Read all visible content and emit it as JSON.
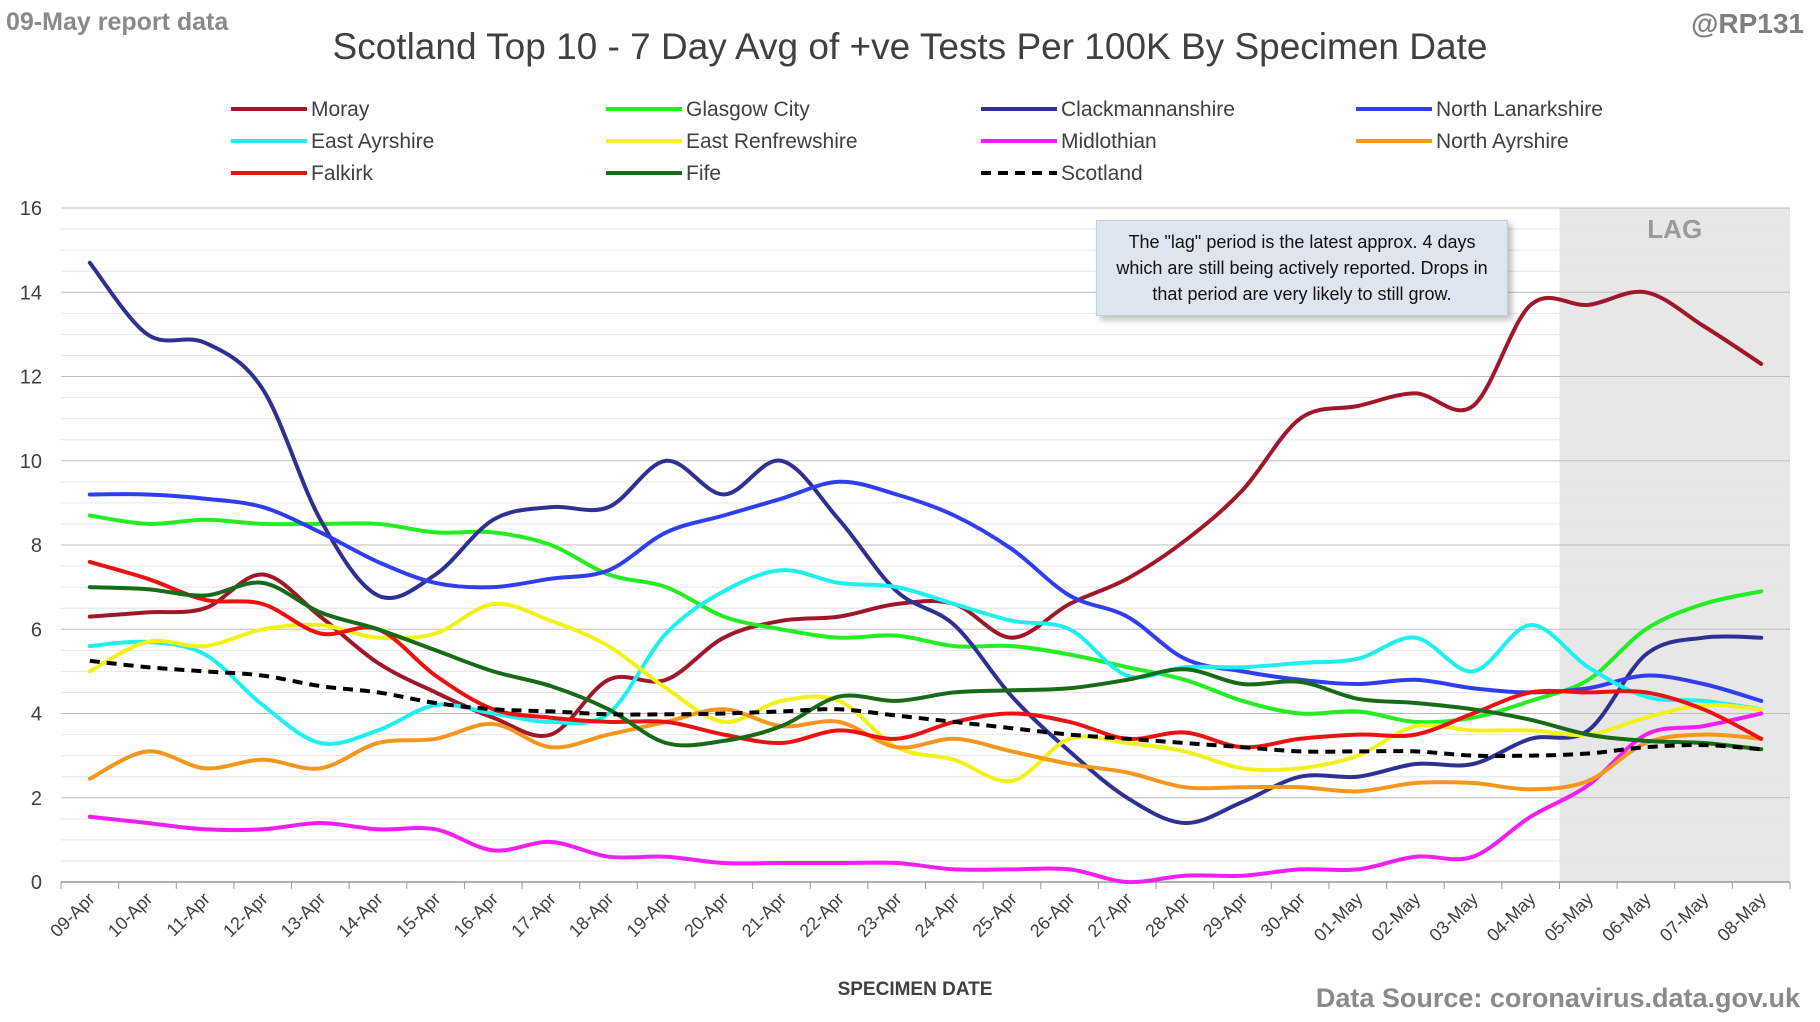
{
  "header": {
    "report_date": "09-May report data",
    "handle": "@RP131"
  },
  "footer": {
    "source": "Data Source: coronavirus.data.gov.uk"
  },
  "annotations": {
    "lag_label": "LAG",
    "lag_note": "The \"lag\" period is the latest approx. 4 days which are still being actively reported.  Drops in that period are very likely to still grow."
  },
  "colors": {
    "Moray": "#a0172a",
    "Glasgow City": "#22ee22",
    "Clackmannanshire": "#2e3192",
    "North Lanarkshire": "#2f3ef0",
    "East Ayrshire": "#1ef0f0",
    "East Renfrewshire": "#f2f21a",
    "Midlothian": "#f21ef2",
    "North Ayrshire": "#f5961e",
    "Falkirk": "#ee1111",
    "Fife": "#176b17",
    "Scotland": "#000000"
  },
  "chart_data": {
    "type": "line",
    "title": "Scotland Top 10 - 7 Day Avg of +ve Tests Per 100K By Specimen Date",
    "xlabel": "SPECIMEN DATE",
    "ylabel": "",
    "ylim": [
      0,
      16
    ],
    "yticks": [
      0,
      2,
      4,
      6,
      8,
      10,
      12,
      14,
      16
    ],
    "grid": true,
    "legend_position": "top",
    "lag_region": [
      "05-May",
      "08-May"
    ],
    "x": [
      "09-Apr",
      "10-Apr",
      "11-Apr",
      "12-Apr",
      "13-Apr",
      "14-Apr",
      "15-Apr",
      "16-Apr",
      "17-Apr",
      "18-Apr",
      "19-Apr",
      "20-Apr",
      "21-Apr",
      "22-Apr",
      "23-Apr",
      "24-Apr",
      "25-Apr",
      "26-Apr",
      "27-Apr",
      "28-Apr",
      "29-Apr",
      "30-Apr",
      "01-May",
      "02-May",
      "03-May",
      "04-May",
      "05-May",
      "06-May",
      "07-May",
      "08-May"
    ],
    "series": [
      {
        "name": "Moray",
        "style": "solid",
        "values": [
          6.3,
          6.4,
          6.5,
          7.3,
          6.3,
          5.2,
          4.5,
          3.9,
          3.5,
          4.8,
          4.8,
          5.8,
          6.2,
          6.3,
          6.6,
          6.6,
          5.8,
          6.6,
          7.2,
          8.1,
          9.3,
          11.0,
          11.3,
          11.6,
          11.3,
          13.7,
          13.7,
          14.0,
          13.2,
          12.3
        ]
      },
      {
        "name": "Glasgow City",
        "style": "solid",
        "values": [
          8.7,
          8.5,
          8.6,
          8.5,
          8.5,
          8.5,
          8.3,
          8.3,
          8.0,
          7.3,
          7.0,
          6.3,
          6.0,
          5.8,
          5.85,
          5.6,
          5.6,
          5.4,
          5.1,
          4.8,
          4.3,
          4.0,
          4.05,
          3.8,
          3.9,
          4.3,
          4.8,
          6.0,
          6.6,
          6.9
        ]
      },
      {
        "name": "Clackmannanshire",
        "style": "solid",
        "values": [
          14.7,
          13.0,
          12.8,
          11.7,
          8.6,
          6.8,
          7.3,
          8.6,
          8.9,
          8.9,
          10.0,
          9.2,
          10.0,
          8.6,
          6.9,
          6.1,
          4.4,
          3.1,
          2.0,
          1.4,
          1.9,
          2.5,
          2.5,
          2.8,
          2.8,
          3.4,
          3.6,
          5.4,
          5.8,
          5.8
        ]
      },
      {
        "name": "North Lanarkshire",
        "style": "solid",
        "values": [
          9.2,
          9.2,
          9.1,
          8.9,
          8.3,
          7.6,
          7.1,
          7.0,
          7.2,
          7.4,
          8.3,
          8.7,
          9.1,
          9.5,
          9.2,
          8.7,
          7.9,
          6.8,
          6.3,
          5.3,
          5.0,
          4.8,
          4.7,
          4.8,
          4.6,
          4.5,
          4.6,
          4.9,
          4.7,
          4.3
        ]
      },
      {
        "name": "East Ayrshire",
        "style": "solid",
        "values": [
          5.6,
          5.7,
          5.4,
          4.2,
          3.3,
          3.6,
          4.2,
          4.0,
          3.8,
          4.0,
          5.9,
          6.9,
          7.4,
          7.1,
          7.0,
          6.6,
          6.2,
          6.0,
          4.9,
          5.1,
          5.1,
          5.2,
          5.3,
          5.8,
          5.0,
          6.1,
          5.1,
          4.4,
          4.3,
          4.1
        ]
      },
      {
        "name": "East Renfrewshire",
        "style": "solid",
        "values": [
          5.0,
          5.7,
          5.6,
          6.0,
          6.1,
          5.8,
          5.9,
          6.6,
          6.2,
          5.6,
          4.6,
          3.8,
          4.3,
          4.3,
          3.2,
          2.9,
          2.4,
          3.4,
          3.3,
          3.1,
          2.7,
          2.7,
          3.0,
          3.7,
          3.6,
          3.6,
          3.5,
          3.9,
          4.2,
          4.1
        ]
      },
      {
        "name": "Midlothian",
        "style": "solid",
        "values": [
          1.55,
          1.4,
          1.25,
          1.25,
          1.4,
          1.25,
          1.25,
          0.75,
          0.95,
          0.6,
          0.6,
          0.45,
          0.45,
          0.45,
          0.45,
          0.3,
          0.3,
          0.3,
          0.0,
          0.15,
          0.15,
          0.3,
          0.3,
          0.6,
          0.6,
          1.55,
          2.3,
          3.5,
          3.7,
          4.0
        ]
      },
      {
        "name": "North Ayrshire",
        "style": "solid",
        "values": [
          2.45,
          3.1,
          2.7,
          2.9,
          2.7,
          3.3,
          3.4,
          3.75,
          3.2,
          3.5,
          3.8,
          4.1,
          3.7,
          3.8,
          3.2,
          3.4,
          3.1,
          2.8,
          2.6,
          2.25,
          2.25,
          2.25,
          2.15,
          2.35,
          2.35,
          2.2,
          2.4,
          3.3,
          3.5,
          3.4
        ]
      },
      {
        "name": "Falkirk",
        "style": "solid",
        "values": [
          7.6,
          7.2,
          6.7,
          6.6,
          5.9,
          6.0,
          4.9,
          4.1,
          3.9,
          3.8,
          3.8,
          3.5,
          3.3,
          3.6,
          3.4,
          3.8,
          4.0,
          3.8,
          3.4,
          3.55,
          3.2,
          3.4,
          3.5,
          3.5,
          4.0,
          4.5,
          4.5,
          4.5,
          4.1,
          3.4
        ]
      },
      {
        "name": "Fife",
        "style": "solid",
        "values": [
          7.0,
          6.95,
          6.8,
          7.1,
          6.4,
          6.0,
          5.5,
          5.0,
          4.65,
          4.1,
          3.3,
          3.35,
          3.7,
          4.4,
          4.3,
          4.5,
          4.55,
          4.6,
          4.8,
          5.05,
          4.7,
          4.75,
          4.35,
          4.25,
          4.1,
          3.85,
          3.5,
          3.35,
          3.3,
          3.15
        ]
      },
      {
        "name": "Scotland",
        "style": "dashed",
        "values": [
          5.25,
          5.1,
          5.0,
          4.9,
          4.65,
          4.5,
          4.25,
          4.1,
          4.05,
          3.98,
          3.98,
          4.0,
          4.05,
          4.1,
          3.95,
          3.8,
          3.65,
          3.5,
          3.4,
          3.3,
          3.2,
          3.1,
          3.1,
          3.1,
          3.0,
          3.0,
          3.05,
          3.2,
          3.25,
          3.15
        ]
      }
    ]
  }
}
